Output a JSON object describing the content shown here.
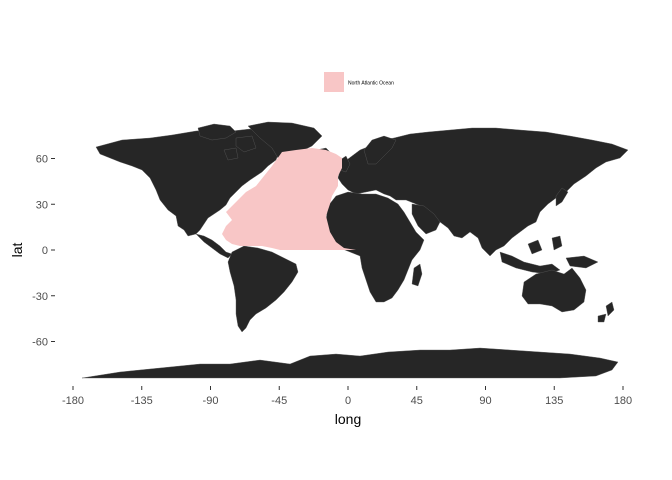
{
  "map": {
    "xlabel": "long",
    "ylabel": "lat",
    "x_ticks": [
      -180,
      -135,
      -90,
      -45,
      0,
      45,
      90,
      135,
      180
    ],
    "y_ticks": [
      60,
      30,
      0,
      -30,
      -60
    ],
    "legend": {
      "label": "North Atlantic Ocean",
      "color": "#f8c6c6"
    },
    "land_color": "#262626",
    "border_color": "#5a5a5a",
    "region_lat": [
      0,
      68
    ],
    "region_long": [
      -82,
      5
    ]
  }
}
